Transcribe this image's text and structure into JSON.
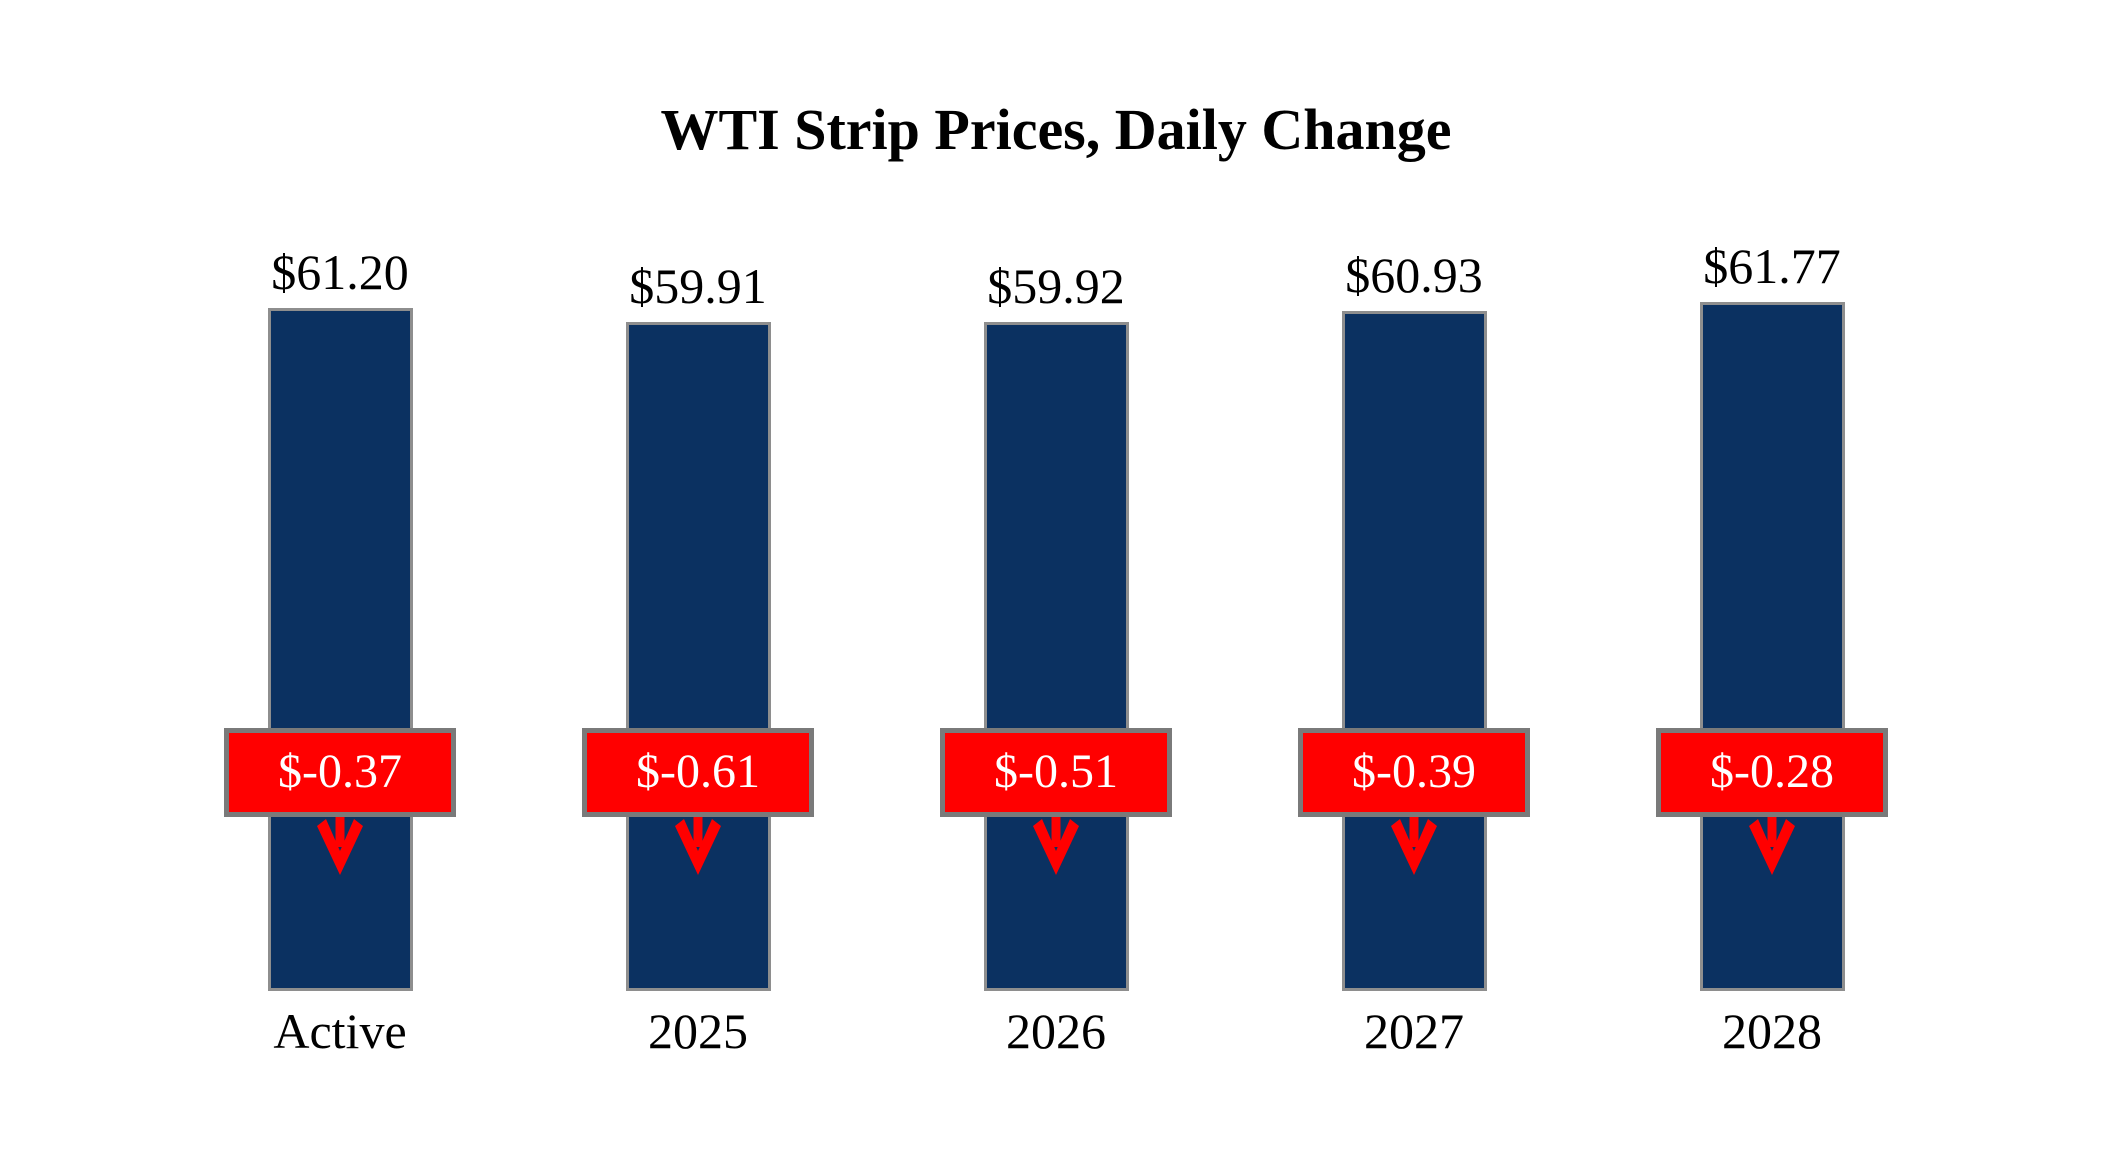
{
  "title": "WTI Strip Prices, Daily Change",
  "colors": {
    "bar": "#0b3161",
    "bar_border": "#8e8e8e",
    "change_badge_bg": "#ff0000",
    "change_badge_border": "#7a7a7a",
    "change_badge_text": "#ffffff",
    "arrow": "#ff0000",
    "label_text": "#000000",
    "background": "#ffffff"
  },
  "chart_data": {
    "type": "bar",
    "title": "WTI Strip Prices, Daily Change",
    "categories": [
      "Active",
      "2025",
      "2026",
      "2027",
      "2028"
    ],
    "series": [
      {
        "name": "strip_price",
        "values": [
          61.2,
          59.91,
          59.92,
          60.93,
          61.77
        ],
        "labels": [
          "$61.20",
          "$59.91",
          "$59.92",
          "$60.93",
          "$61.77"
        ]
      },
      {
        "name": "daily_change",
        "values": [
          -0.37,
          -0.61,
          -0.51,
          -0.39,
          -0.28
        ],
        "labels": [
          "$-0.37",
          "$-0.61",
          "$-0.51",
          "$-0.39",
          "$-0.28"
        ]
      }
    ],
    "xlabel": "",
    "ylabel": "",
    "ylim": [
      0,
      65
    ],
    "grid": false,
    "legend": false,
    "axes_hidden": true,
    "direction_indicator": "down-arrow"
  }
}
